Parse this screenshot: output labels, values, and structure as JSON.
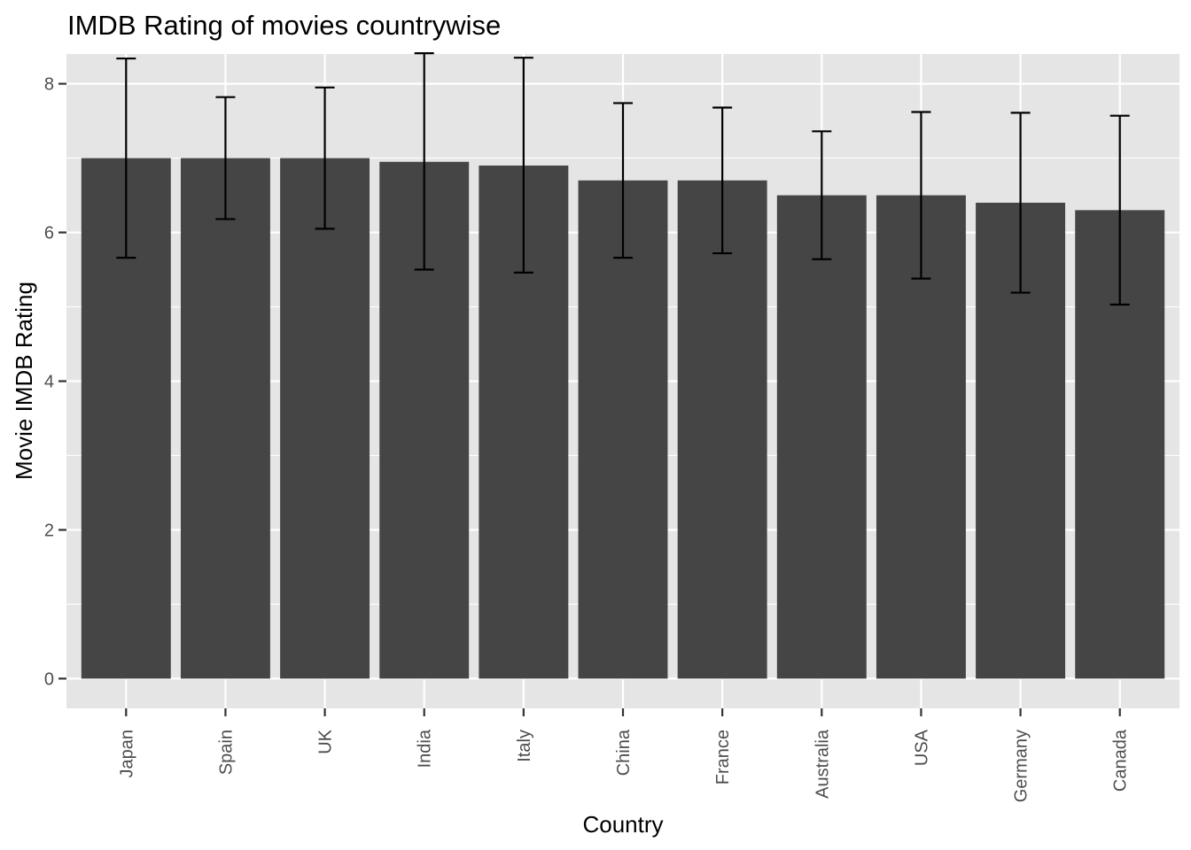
{
  "chart_data": {
    "type": "bar",
    "title": "IMDB Rating of movies countrywise",
    "xlabel": "Country",
    "ylabel": "Movie IMDB Rating",
    "categories": [
      "Japan",
      "Spain",
      "UK",
      "India",
      "Italy",
      "China",
      "France",
      "Australia",
      "USA",
      "Germany",
      "Canada"
    ],
    "values": [
      7.0,
      7.0,
      7.0,
      6.95,
      6.9,
      6.7,
      6.7,
      6.5,
      6.5,
      6.4,
      6.3
    ],
    "error_low": [
      5.66,
      6.18,
      6.05,
      5.5,
      5.46,
      5.66,
      5.72,
      5.64,
      5.38,
      5.19,
      5.03
    ],
    "error_high": [
      8.34,
      7.82,
      7.95,
      8.41,
      8.35,
      7.74,
      7.68,
      7.36,
      7.62,
      7.61,
      7.57
    ],
    "ylim": [
      -0.4,
      8.4
    ],
    "y_ticks": [
      "0",
      "2",
      "4",
      "6",
      "8"
    ],
    "grid": true,
    "legend": "none",
    "colors": {
      "bar": "#454545",
      "panel": "#e5e5e5",
      "grid": "#ffffff",
      "errorbar": "#000000",
      "tick": "#333333",
      "tick_label": "#4d4d4d"
    }
  }
}
